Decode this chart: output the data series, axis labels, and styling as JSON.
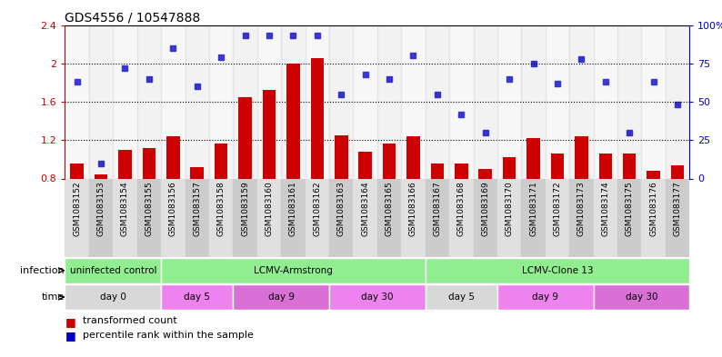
{
  "title": "GDS4556 / 10547888",
  "samples": [
    "GSM1083152",
    "GSM1083153",
    "GSM1083154",
    "GSM1083155",
    "GSM1083156",
    "GSM1083157",
    "GSM1083158",
    "GSM1083159",
    "GSM1083160",
    "GSM1083161",
    "GSM1083162",
    "GSM1083163",
    "GSM1083164",
    "GSM1083165",
    "GSM1083166",
    "GSM1083167",
    "GSM1083168",
    "GSM1083169",
    "GSM1083170",
    "GSM1083171",
    "GSM1083172",
    "GSM1083173",
    "GSM1083174",
    "GSM1083175",
    "GSM1083176",
    "GSM1083177"
  ],
  "bar_values": [
    0.96,
    0.84,
    1.1,
    1.12,
    1.24,
    0.92,
    1.16,
    1.65,
    1.72,
    2.0,
    2.05,
    1.25,
    1.08,
    1.16,
    1.24,
    0.96,
    0.96,
    0.9,
    1.02,
    1.22,
    1.06,
    1.24,
    1.06,
    1.06,
    0.88,
    0.94
  ],
  "dot_values": [
    63,
    10,
    72,
    65,
    85,
    60,
    79,
    93,
    93,
    93,
    93,
    55,
    68,
    65,
    80,
    55,
    42,
    30,
    65,
    75,
    62,
    78,
    63,
    30,
    63,
    48
  ],
  "bar_color": "#cc0000",
  "dot_color": "#0000cc",
  "ylim_left": [
    0.8,
    2.4
  ],
  "ylim_right": [
    0,
    100
  ],
  "yticks_left": [
    0.8,
    1.2,
    1.6,
    2.0,
    2.4
  ],
  "yticks_right": [
    0,
    25,
    50,
    75,
    100
  ],
  "ytick_labels_right": [
    "0",
    "25",
    "50",
    "75",
    "100%"
  ],
  "grid_values": [
    1.2,
    1.6,
    2.0
  ],
  "inf_blocks": [
    {
      "label": "uninfected control",
      "start": 0,
      "end": 3,
      "color": "#90ee90"
    },
    {
      "label": "LCMV-Armstrong",
      "start": 4,
      "end": 14,
      "color": "#90ee90"
    },
    {
      "label": "LCMV-Clone 13",
      "start": 15,
      "end": 25,
      "color": "#90ee90"
    }
  ],
  "time_blocks": [
    {
      "label": "day 0",
      "start": 0,
      "end": 3,
      "color": "#d8d8d8"
    },
    {
      "label": "day 5",
      "start": 4,
      "end": 6,
      "color": "#ee82ee"
    },
    {
      "label": "day 9",
      "start": 7,
      "end": 10,
      "color": "#da70d6"
    },
    {
      "label": "day 30",
      "start": 11,
      "end": 14,
      "color": "#ee82ee"
    },
    {
      "label": "day 5",
      "start": 15,
      "end": 17,
      "color": "#d8d8d8"
    },
    {
      "label": "day 9",
      "start": 18,
      "end": 21,
      "color": "#ee82ee"
    },
    {
      "label": "day 30",
      "start": 22,
      "end": 25,
      "color": "#da70d6"
    }
  ],
  "legend_bar_label": "transformed count",
  "legend_dot_label": "percentile rank within the sample",
  "xlabel_infection": "infection",
  "xlabel_time": "time",
  "col_bg_even": "#e0e0e0",
  "col_bg_odd": "#cccccc"
}
